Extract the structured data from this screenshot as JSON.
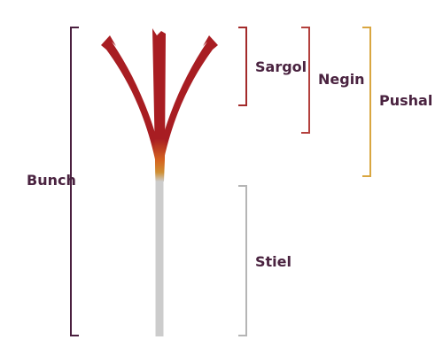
{
  "labels": {
    "sargol": "Sargol",
    "negin": "Negin",
    "pushal": "Pushal",
    "stiel": "Stiel",
    "bunch": "Bunch"
  },
  "colors": {
    "stigma_red": "#a81d22",
    "stigma_orange": "#cf8f33",
    "style_gray": "#cccccc",
    "bracket_dark_red": "#a32a2a",
    "bracket_brown_red": "#b3403d",
    "bracket_gold": "#d9a640",
    "bracket_gray": "#b5b5b5",
    "bracket_purple": "#4a1f3f",
    "label_text": "#4a2340"
  }
}
